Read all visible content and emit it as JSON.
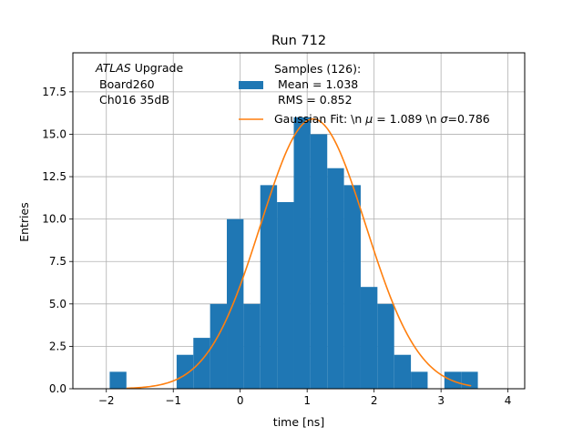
{
  "chart_data": {
    "type": "bar",
    "title": "Run 712",
    "xlabel": "time [ns]",
    "ylabel": "Entries",
    "xlim": [
      -2.5,
      4.25
    ],
    "ylim": [
      0,
      19.8
    ],
    "xticks": [
      -2,
      -1,
      0,
      1,
      2,
      3,
      4
    ],
    "xtick_labels": [
      "−2",
      "−1",
      "0",
      "1",
      "2",
      "3",
      "4"
    ],
    "yticks": [
      0,
      2.5,
      5,
      7.5,
      10,
      12.5,
      15,
      17.5
    ],
    "ytick_labels": [
      "0.0",
      "2.5",
      "5.0",
      "7.5",
      "10.0",
      "12.5",
      "15.0",
      "17.5"
    ],
    "grid": true,
    "bin_edges": [
      -1.95,
      -1.7,
      -1.45,
      -1.2,
      -0.95,
      -0.7,
      -0.45,
      -0.2,
      0.05,
      0.3,
      0.55,
      0.8,
      1.05,
      1.3,
      1.55,
      1.8,
      2.05,
      2.3,
      2.55,
      2.8,
      3.05,
      3.3,
      3.55
    ],
    "bin_edges_note": "",
    "counts": [
      1,
      0,
      0,
      0,
      2,
      3,
      5,
      10,
      5,
      12,
      11,
      16,
      15,
      13,
      12,
      6,
      5,
      2,
      1,
      0,
      1,
      1
    ],
    "bar_color": "#1f77b4",
    "fit": {
      "mu": 1.089,
      "sigma": 0.786,
      "amplitude": 15.9,
      "x_range": [
        -1.7,
        3.45
      ],
      "color": "#ff7f0e"
    },
    "annotation": {
      "italic": "ATLAS",
      "line1_rest": " Upgrade",
      "line2": "Board260",
      "line3": "Ch016 35dB"
    },
    "legend": {
      "placement": "top-right",
      "hist_label_lines": [
        "Samples (126):",
        " Mean = 1.038",
        " RMS = 0.852"
      ],
      "fit_label_prefix": "Gaussian Fit: \\n ",
      "fit_label_mu": "μ",
      "fit_label_mid": " = 1.089 \\n ",
      "fit_label_sigma": "σ",
      "fit_label_end": "=0.786"
    }
  }
}
